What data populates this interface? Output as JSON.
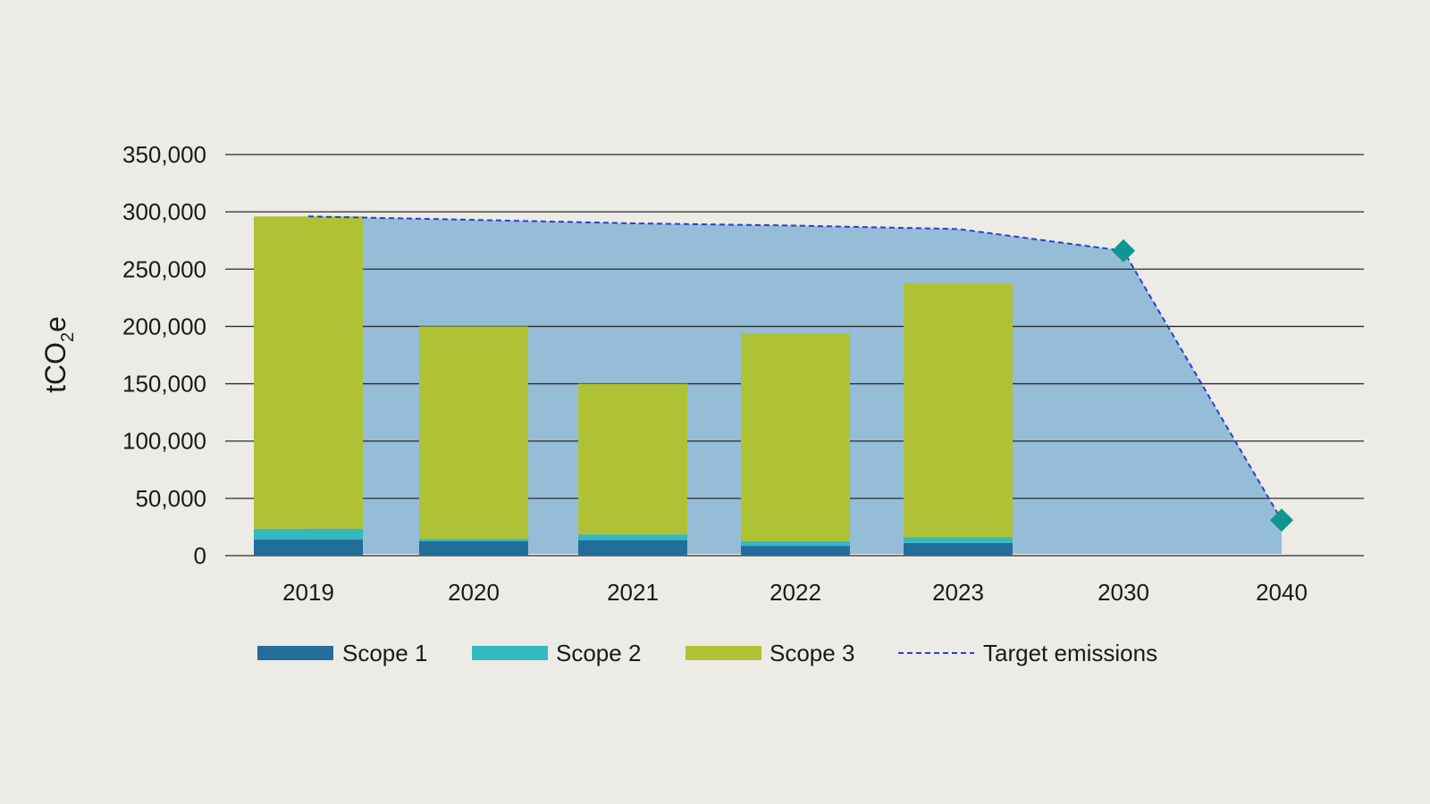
{
  "chart_data": {
    "type": "bar",
    "stacked": true,
    "title": "",
    "xlabel": "",
    "ylabel": {
      "main": "tCO",
      "subscript": "2",
      "suffix": "e"
    },
    "ylim": [
      0,
      350000
    ],
    "yticks": [
      0,
      50000,
      100000,
      150000,
      200000,
      250000,
      300000,
      350000
    ],
    "ytick_labels": [
      "0",
      "50,000",
      "100,000",
      "150,000",
      "200,000",
      "250,000",
      "300,000",
      "350,000"
    ],
    "categories": [
      "2019",
      "2020",
      "2021",
      "2022",
      "2023",
      "2030",
      "2040"
    ],
    "grid": true,
    "legend_position": "bottom",
    "series": [
      {
        "name": "Scope 1",
        "color": "#236d9b",
        "values": [
          14000,
          12500,
          13500,
          8500,
          11000,
          null,
          null
        ]
      },
      {
        "name": "Scope 2",
        "color": "#36b8c1",
        "values": [
          9500,
          2000,
          5000,
          4000,
          5000,
          null,
          null
        ]
      },
      {
        "name": "Scope 3",
        "color": "#afc236",
        "values": [
          272500,
          185500,
          131500,
          181500,
          222000,
          null,
          null
        ]
      }
    ],
    "target": {
      "name": "Target emissions",
      "color": "#2a3fcf",
      "area_color": "#95bdd8",
      "values": [
        296000,
        293000,
        290000,
        288000,
        285000,
        266000,
        31000
      ],
      "markers": [
        {
          "category": "2030",
          "value": 266000
        },
        {
          "category": "2040",
          "value": 31000
        }
      ],
      "marker_color": "#0f9691"
    }
  }
}
